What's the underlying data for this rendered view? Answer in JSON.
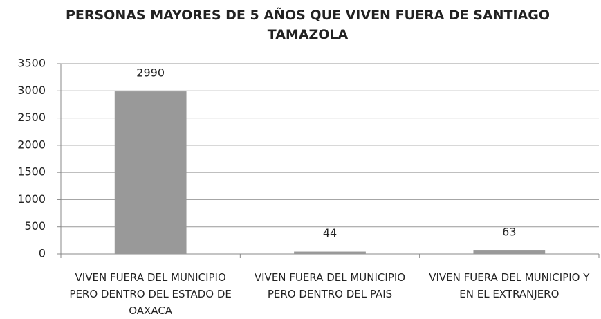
{
  "chart_data": {
    "type": "bar",
    "title": "PERSONAS MAYORES DE 5 AÑOS QUE VIVEN FUERA DE SANTIAGO TAMAZOLA",
    "categories": [
      "VIVEN FUERA DEL MUNICIPIO PERO DENTRO DEL ESTADO DE OAXACA",
      "VIVEN FUERA DEL MUNICIPIO PERO DENTRO DEL PAIS",
      "VIVEN FUERA DEL MUNICIPIO Y EN EL EXTRANJERO"
    ],
    "values": [
      2990,
      44,
      63
    ],
    "color": "#999999",
    "ylim": [
      0,
      3500
    ],
    "yticks": [
      0,
      500,
      1000,
      1500,
      2000,
      2500,
      3000,
      3500
    ],
    "grid": true
  }
}
